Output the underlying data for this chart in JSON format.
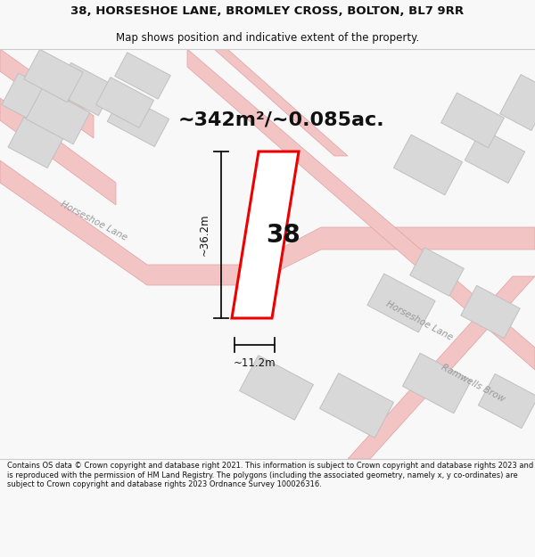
{
  "title": "38, HORSESHOE LANE, BROMLEY CROSS, BOLTON, BL7 9RR",
  "subtitle": "Map shows position and indicative extent of the property.",
  "area_text": "~342m²/~0.085ac.",
  "property_number": "38",
  "dim_width": "~11.2m",
  "dim_height": "~36.2m",
  "footer": "Contains OS data © Crown copyright and database right 2021. This information is subject to Crown copyright and database rights 2023 and is reproduced with the permission of HM Land Registry. The polygons (including the associated geometry, namely x, y co-ordinates) are subject to Crown copyright and database rights 2023 Ordnance Survey 100026316.",
  "bg_color": "#f8f8f8",
  "map_bg": "#ffffff",
  "road_color": "#f2c4c4",
  "road_edge_color": "#e0a0a0",
  "building_color": "#d8d8d8",
  "building_edge": "#c0c0c0",
  "highlight_color": "#ee0000",
  "dim_color": "#111111",
  "text_color": "#111111",
  "road_label_color": "#999999",
  "footer_color": "#111111",
  "title_fontsize": 9.5,
  "subtitle_fontsize": 8.5,
  "footer_fontsize": 6.0,
  "area_fontsize": 16,
  "propnum_fontsize": 20,
  "dim_fontsize": 8.5,
  "road_label_fontsize": 7.5
}
